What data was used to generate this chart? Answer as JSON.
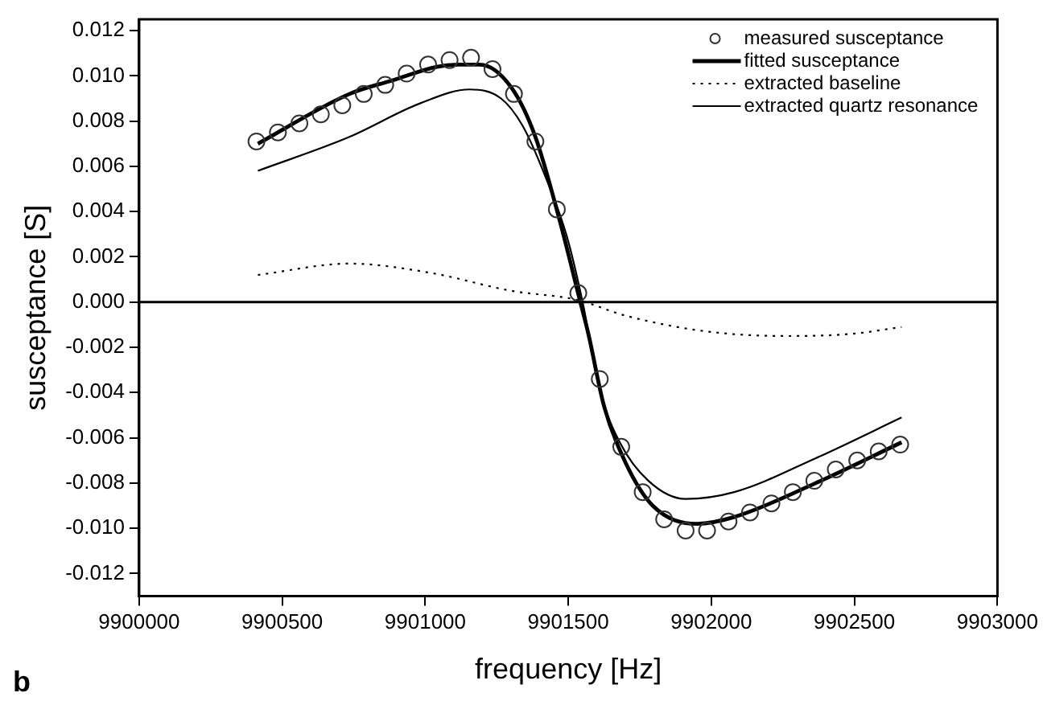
{
  "chart_data": {
    "type": "line",
    "xlabel": "frequency [Hz]",
    "ylabel": "susceptance [S]",
    "xlim": [
      9900000,
      9903000
    ],
    "xticks": [
      9900000,
      9900500,
      9901000,
      9901500,
      9902000,
      9902500,
      9903000
    ],
    "ylim": [
      -0.013,
      0.0125
    ],
    "yticks": [
      {
        "value": -0.012,
        "label": "-0.012"
      },
      {
        "value": -0.01,
        "label": "-0.010"
      },
      {
        "value": -0.008,
        "label": "-0.008"
      },
      {
        "value": -0.006,
        "label": "-0.006"
      },
      {
        "value": -0.004,
        "label": "-0.004"
      },
      {
        "value": -0.002,
        "label": "-0.002"
      },
      {
        "value": 0,
        "label": "0.000"
      },
      {
        "value": 0.002,
        "label": "0.002"
      },
      {
        "value": 0.004,
        "label": "0.004"
      },
      {
        "value": 0.006,
        "label": "0.006"
      },
      {
        "value": 0.008,
        "label": "0.008"
      },
      {
        "value": 0.01,
        "label": "0.010"
      },
      {
        "value": 0.012,
        "label": "0.012"
      }
    ],
    "grid": false,
    "legend": "top right",
    "ref_lines": [
      {
        "axis": "y",
        "value": 0,
        "color": "#000000"
      }
    ],
    "annotations": [
      "b"
    ],
    "series": [
      {
        "name": "measured susceptance",
        "type": "scatter",
        "marker": "circle",
        "color": "#333333",
        "x": [
          9900410,
          9900485,
          9900560,
          9900635,
          9900710,
          9900785,
          9900860,
          9900935,
          9901010,
          9901085,
          9901160,
          9901235,
          9901310,
          9901385,
          9901460,
          9901535,
          9901610,
          9901685,
          9901760,
          9901835,
          9901910,
          9901985,
          9902060,
          9902135,
          9902210,
          9902285,
          9902360,
          9902435,
          9902510,
          9902585,
          9902660
        ],
        "values": [
          0.0071,
          0.0075,
          0.0079,
          0.0083,
          0.0087,
          0.0092,
          0.0096,
          0.0101,
          0.0105,
          0.0107,
          0.0108,
          0.0103,
          0.0092,
          0.0071,
          0.0041,
          0.0004,
          -0.0034,
          -0.0064,
          -0.0084,
          -0.0096,
          -0.0101,
          -0.0101,
          -0.0097,
          -0.0093,
          -0.0089,
          -0.0084,
          -0.0079,
          -0.0074,
          -0.007,
          -0.0066,
          -0.0063
        ]
      },
      {
        "name": "fitted susceptance",
        "type": "line",
        "line_style": "solid",
        "marker": "none",
        "color": "#000000",
        "x": [
          9900415,
          9900735,
          9900885,
          9901040,
          9901115,
          9901190,
          9901300,
          9901385,
          9901470,
          9901540,
          9901570,
          9901625,
          9901700,
          9901795,
          9901950,
          9902080,
          9902365,
          9902665
        ],
        "values": [
          0.007,
          0.0092,
          0.0098,
          0.0104,
          0.0105,
          0.0105,
          0.0095,
          0.0073,
          0.0036,
          0.0001,
          -0.0014,
          -0.0046,
          -0.0071,
          -0.009,
          -0.0098,
          -0.0095,
          -0.008,
          -0.0062
        ]
      },
      {
        "name": "extracted baseline",
        "type": "line",
        "line_style": "dotted",
        "marker": "none",
        "color": "#000000",
        "x": [
          9900415,
          9900735,
          9901015,
          9901300,
          9901530,
          9901700,
          9901985,
          9902265,
          9902495,
          9902665
        ],
        "values": [
          0.0012,
          0.0017,
          0.0013,
          0.0005,
          0.0001,
          -0.0006,
          -0.0013,
          -0.0015,
          -0.0014,
          -0.0011
        ]
      },
      {
        "name": "extracted quartz resonance",
        "type": "line",
        "line_style": "solid",
        "marker": "none",
        "color": "#000000",
        "x": [
          9900415,
          9900735,
          9900985,
          9901155,
          9901265,
          9901340,
          9901415,
          9901495,
          9901550,
          9901610,
          9901680,
          9901780,
          9901910,
          9902080,
          9902365,
          9902665
        ],
        "values": [
          0.0058,
          0.0073,
          0.0088,
          0.0094,
          0.009,
          0.0078,
          0.0057,
          0.0029,
          0,
          -0.0039,
          -0.0062,
          -0.0079,
          -0.0087,
          -0.0084,
          -0.0069,
          -0.0051
        ]
      }
    ]
  }
}
